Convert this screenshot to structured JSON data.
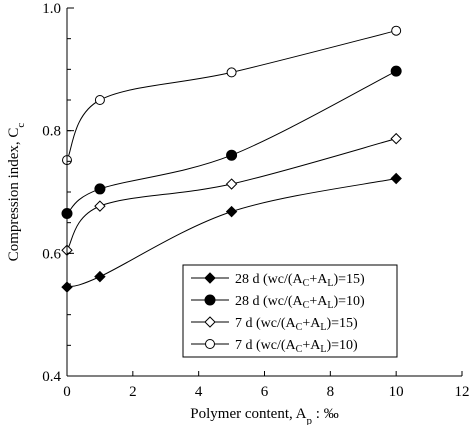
{
  "chart_data": {
    "type": "line",
    "xlabel": "Polymer content, A",
    "xlabel_sub": "p",
    "xlabel_unit": " : ‰",
    "ylabel": "Compression index, C",
    "ylabel_sub": "c",
    "xlim": [
      0,
      12
    ],
    "ylim": [
      0.4,
      1.0
    ],
    "xticks": [
      0,
      2,
      4,
      6,
      8,
      10,
      12
    ],
    "yticks": [
      0.4,
      0.6,
      0.8,
      1.0
    ],
    "ytick_labels": [
      "0.4",
      "0.6",
      "0.8",
      "1.0"
    ],
    "grid": false,
    "legend_position": "bottom-right",
    "series": [
      {
        "name": "28 d (wc/(AC+AL)=15)",
        "legend_parts": [
          "28 d (wc/(A",
          "C",
          "+A",
          "L",
          ")=15)"
        ],
        "marker": "diamond",
        "filled": true,
        "x": [
          0,
          1,
          5,
          10
        ],
        "y": [
          0.545,
          0.562,
          0.668,
          0.722
        ]
      },
      {
        "name": "28 d (wc/(AC+AL)=10)",
        "legend_parts": [
          "28 d (wc/(A",
          "C",
          "+A",
          "L",
          ")=10)"
        ],
        "marker": "circle",
        "filled": true,
        "x": [
          0,
          1,
          5,
          10
        ],
        "y": [
          0.665,
          0.705,
          0.76,
          0.897
        ]
      },
      {
        "name": "7 d (wc/(AC+AL)=15)",
        "legend_parts": [
          "7 d (wc/(A",
          "C",
          "+A",
          "L",
          ")=15)"
        ],
        "marker": "diamond",
        "filled": false,
        "x": [
          0,
          1,
          5,
          10
        ],
        "y": [
          0.605,
          0.677,
          0.713,
          0.787
        ]
      },
      {
        "name": "7 d (wc/(AC+AL)=10)",
        "legend_parts": [
          "7 d (wc/(A",
          "C",
          "+A",
          "L",
          ")=10)"
        ],
        "marker": "circle",
        "filled": false,
        "x": [
          0,
          1,
          5,
          10
        ],
        "y": [
          0.752,
          0.85,
          0.895,
          0.963
        ]
      }
    ]
  }
}
